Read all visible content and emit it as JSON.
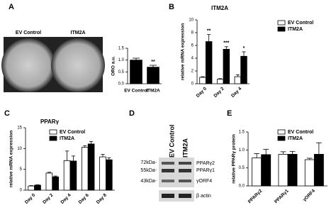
{
  "panels": [
    "A",
    "B",
    "C",
    "D",
    "E"
  ],
  "panel_a_images": {
    "labels": [
      "EV Control",
      "ITM2A"
    ]
  },
  "western_blot": {
    "lanes": [
      "EV Control",
      "ITM2A"
    ],
    "markers": [
      "72kDa-",
      "55kDa-",
      "43kDa-"
    ],
    "bands": [
      "PPARγ2",
      "PPARγ1",
      "γORF4",
      "β actin"
    ]
  },
  "chart_data": [
    {
      "type": "bar",
      "y_label": "ORO a.u.",
      "categories": [
        "EV Control",
        "ITM2A"
      ],
      "values": [
        1.0,
        0.7
      ],
      "errors": [
        0.08,
        0.08
      ],
      "significance": [
        null,
        "**"
      ],
      "color": "#000000",
      "ylim": [
        0,
        1.5
      ],
      "yticks": [
        {
          "value": 0,
          "label": "0.0"
        },
        0.5,
        {
          "value": 1,
          "label": "1.0"
        },
        1.5
      ]
    },
    {
      "type": "bar",
      "title": "ITM2A",
      "y_label": "relative mRNA expression",
      "categories": [
        "Day 0",
        "Day 2",
        "Day 4"
      ],
      "series": [
        {
          "name": "EV Control",
          "color": "#ffffff",
          "values": [
            1.0,
            0.7,
            1.1
          ],
          "errors": [
            0.1,
            0.1,
            0.3
          ]
        },
        {
          "name": "ITM2A",
          "color": "#000000",
          "values": [
            6.6,
            5.4,
            4.3
          ],
          "errors": [
            1.1,
            0.4,
            0.7
          ],
          "significance": [
            "**",
            "***",
            "*"
          ]
        }
      ],
      "ylim": [
        0,
        10
      ],
      "yticks": [
        0,
        2,
        4,
        6,
        8,
        10
      ]
    },
    {
      "type": "bar",
      "title": "PPARγ",
      "y_label": "relative mRNA expression",
      "categories": [
        "Day 0",
        "Day 2",
        "Day 4",
        "Day 6",
        "Day 8"
      ],
      "series": [
        {
          "name": "EV Control",
          "color": "#ffffff",
          "values": [
            1.0,
            4.1,
            7.1,
            10.3,
            8.0
          ],
          "errors": [
            0.1,
            0.2,
            2.3,
            0.4,
            0.6
          ]
        },
        {
          "name": "ITM2A",
          "color": "#000000",
          "values": [
            1.2,
            3.2,
            7.0,
            11.1,
            7.3
          ],
          "errors": [
            0.1,
            0.2,
            1.2,
            0.6,
            0.5
          ]
        }
      ],
      "ylim": [
        0,
        15
      ],
      "yticks": [
        0,
        5,
        10,
        15
      ]
    },
    {
      "type": "bar",
      "y_label": "relative PPARγ protein",
      "categories": [
        "PPARγ2",
        "PPARγ1",
        "γORF4"
      ],
      "series": [
        {
          "name": "EV Control",
          "color": "#ffffff",
          "values": [
            0.78,
            0.88,
            0.73
          ],
          "errors": [
            0.12,
            0.07,
            0.04
          ]
        },
        {
          "name": "ITM2A",
          "color": "#000000",
          "values": [
            0.87,
            0.88,
            0.88
          ],
          "errors": [
            0.15,
            0.08,
            0.32
          ]
        }
      ],
      "ylim": [
        0,
        1.5
      ],
      "yticks": [
        {
          "value": 0,
          "label": "0.0"
        },
        0.5,
        {
          "value": 1,
          "label": "1.0"
        },
        1.5
      ]
    }
  ]
}
